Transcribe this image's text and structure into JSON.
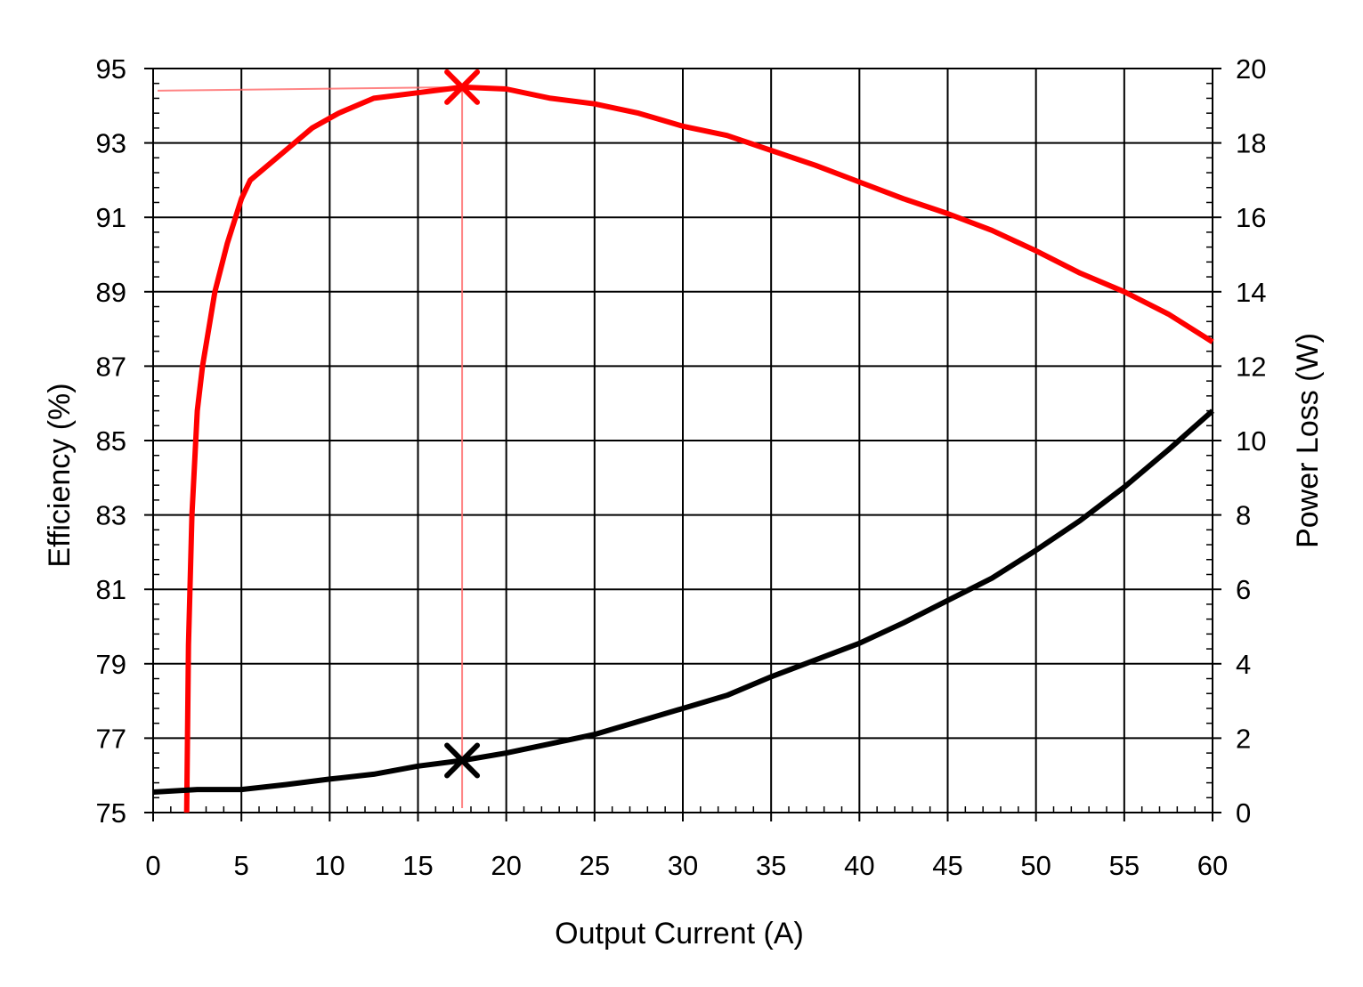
{
  "chart_data": {
    "type": "line",
    "title": "",
    "xlabel": "Output Current (A)",
    "ylabel_left": "Efficiency (%)",
    "ylabel_right": "Power Loss (W)",
    "xlim": [
      0,
      60
    ],
    "ylim_left": [
      75,
      95
    ],
    "ylim_right": [
      0,
      20
    ],
    "x_ticks": [
      0,
      5,
      10,
      15,
      20,
      25,
      30,
      35,
      40,
      45,
      50,
      55,
      60
    ],
    "y_left_ticks": [
      75,
      77,
      79,
      81,
      83,
      85,
      87,
      89,
      91,
      93,
      95
    ],
    "y_right_ticks": [
      0,
      2,
      4,
      6,
      8,
      10,
      12,
      14,
      16,
      18,
      20
    ],
    "grid": true,
    "series": [
      {
        "axis": "left",
        "color": "#ff0000",
        "points": [
          [
            1.9,
            75
          ],
          [
            2.0,
            79.5
          ],
          [
            2.2,
            83
          ],
          [
            2.5,
            85.8
          ],
          [
            2.8,
            87
          ],
          [
            3.5,
            89
          ],
          [
            4.2,
            90.3
          ],
          [
            5.0,
            91.5
          ],
          [
            5.5,
            92.0
          ],
          [
            7.5,
            92.8
          ],
          [
            9.0,
            93.4
          ],
          [
            10.5,
            93.8
          ],
          [
            12.5,
            94.2
          ],
          [
            15.0,
            94.35
          ],
          [
            17.5,
            94.5
          ],
          [
            20.0,
            94.45
          ],
          [
            22.5,
            94.2
          ],
          [
            25.0,
            94.05
          ],
          [
            27.5,
            93.8
          ],
          [
            30.0,
            93.45
          ],
          [
            32.5,
            93.2
          ],
          [
            35.0,
            92.8
          ],
          [
            37.5,
            92.4
          ],
          [
            40.0,
            91.95
          ],
          [
            42.5,
            91.5
          ],
          [
            45.0,
            91.1
          ],
          [
            47.5,
            90.65
          ],
          [
            50.0,
            90.1
          ],
          [
            52.5,
            89.5
          ],
          [
            55.0,
            89.0
          ],
          [
            57.5,
            88.4
          ],
          [
            60.0,
            87.65
          ]
        ]
      },
      {
        "axis": "right",
        "color": "#000000",
        "points": [
          [
            0,
            0.55
          ],
          [
            2.5,
            0.62
          ],
          [
            5.0,
            0.62
          ],
          [
            7.5,
            0.75
          ],
          [
            10.0,
            0.9
          ],
          [
            12.5,
            1.03
          ],
          [
            15.0,
            1.25
          ],
          [
            17.5,
            1.4
          ],
          [
            20.0,
            1.6
          ],
          [
            22.5,
            1.85
          ],
          [
            25.0,
            2.1
          ],
          [
            27.5,
            2.45
          ],
          [
            30.0,
            2.8
          ],
          [
            32.5,
            3.15
          ],
          [
            35.0,
            3.65
          ],
          [
            37.5,
            4.1
          ],
          [
            40.0,
            4.55
          ],
          [
            42.5,
            5.1
          ],
          [
            45.0,
            5.7
          ],
          [
            47.5,
            6.3
          ],
          [
            50.0,
            7.05
          ],
          [
            52.5,
            7.85
          ],
          [
            55.0,
            8.75
          ],
          [
            57.5,
            9.75
          ],
          [
            60.0,
            10.8
          ]
        ]
      }
    ],
    "markers": [
      {
        "x": 17.5,
        "y": 94.5,
        "axis": "left",
        "color": "#ff0000",
        "symbol": "x"
      },
      {
        "x": 17.5,
        "y": 1.4,
        "axis": "right",
        "color": "#000000",
        "symbol": "x"
      }
    ],
    "guide_lines": {
      "color": "#ff6666",
      "x": 17.5,
      "y_left": 94.5
    }
  }
}
